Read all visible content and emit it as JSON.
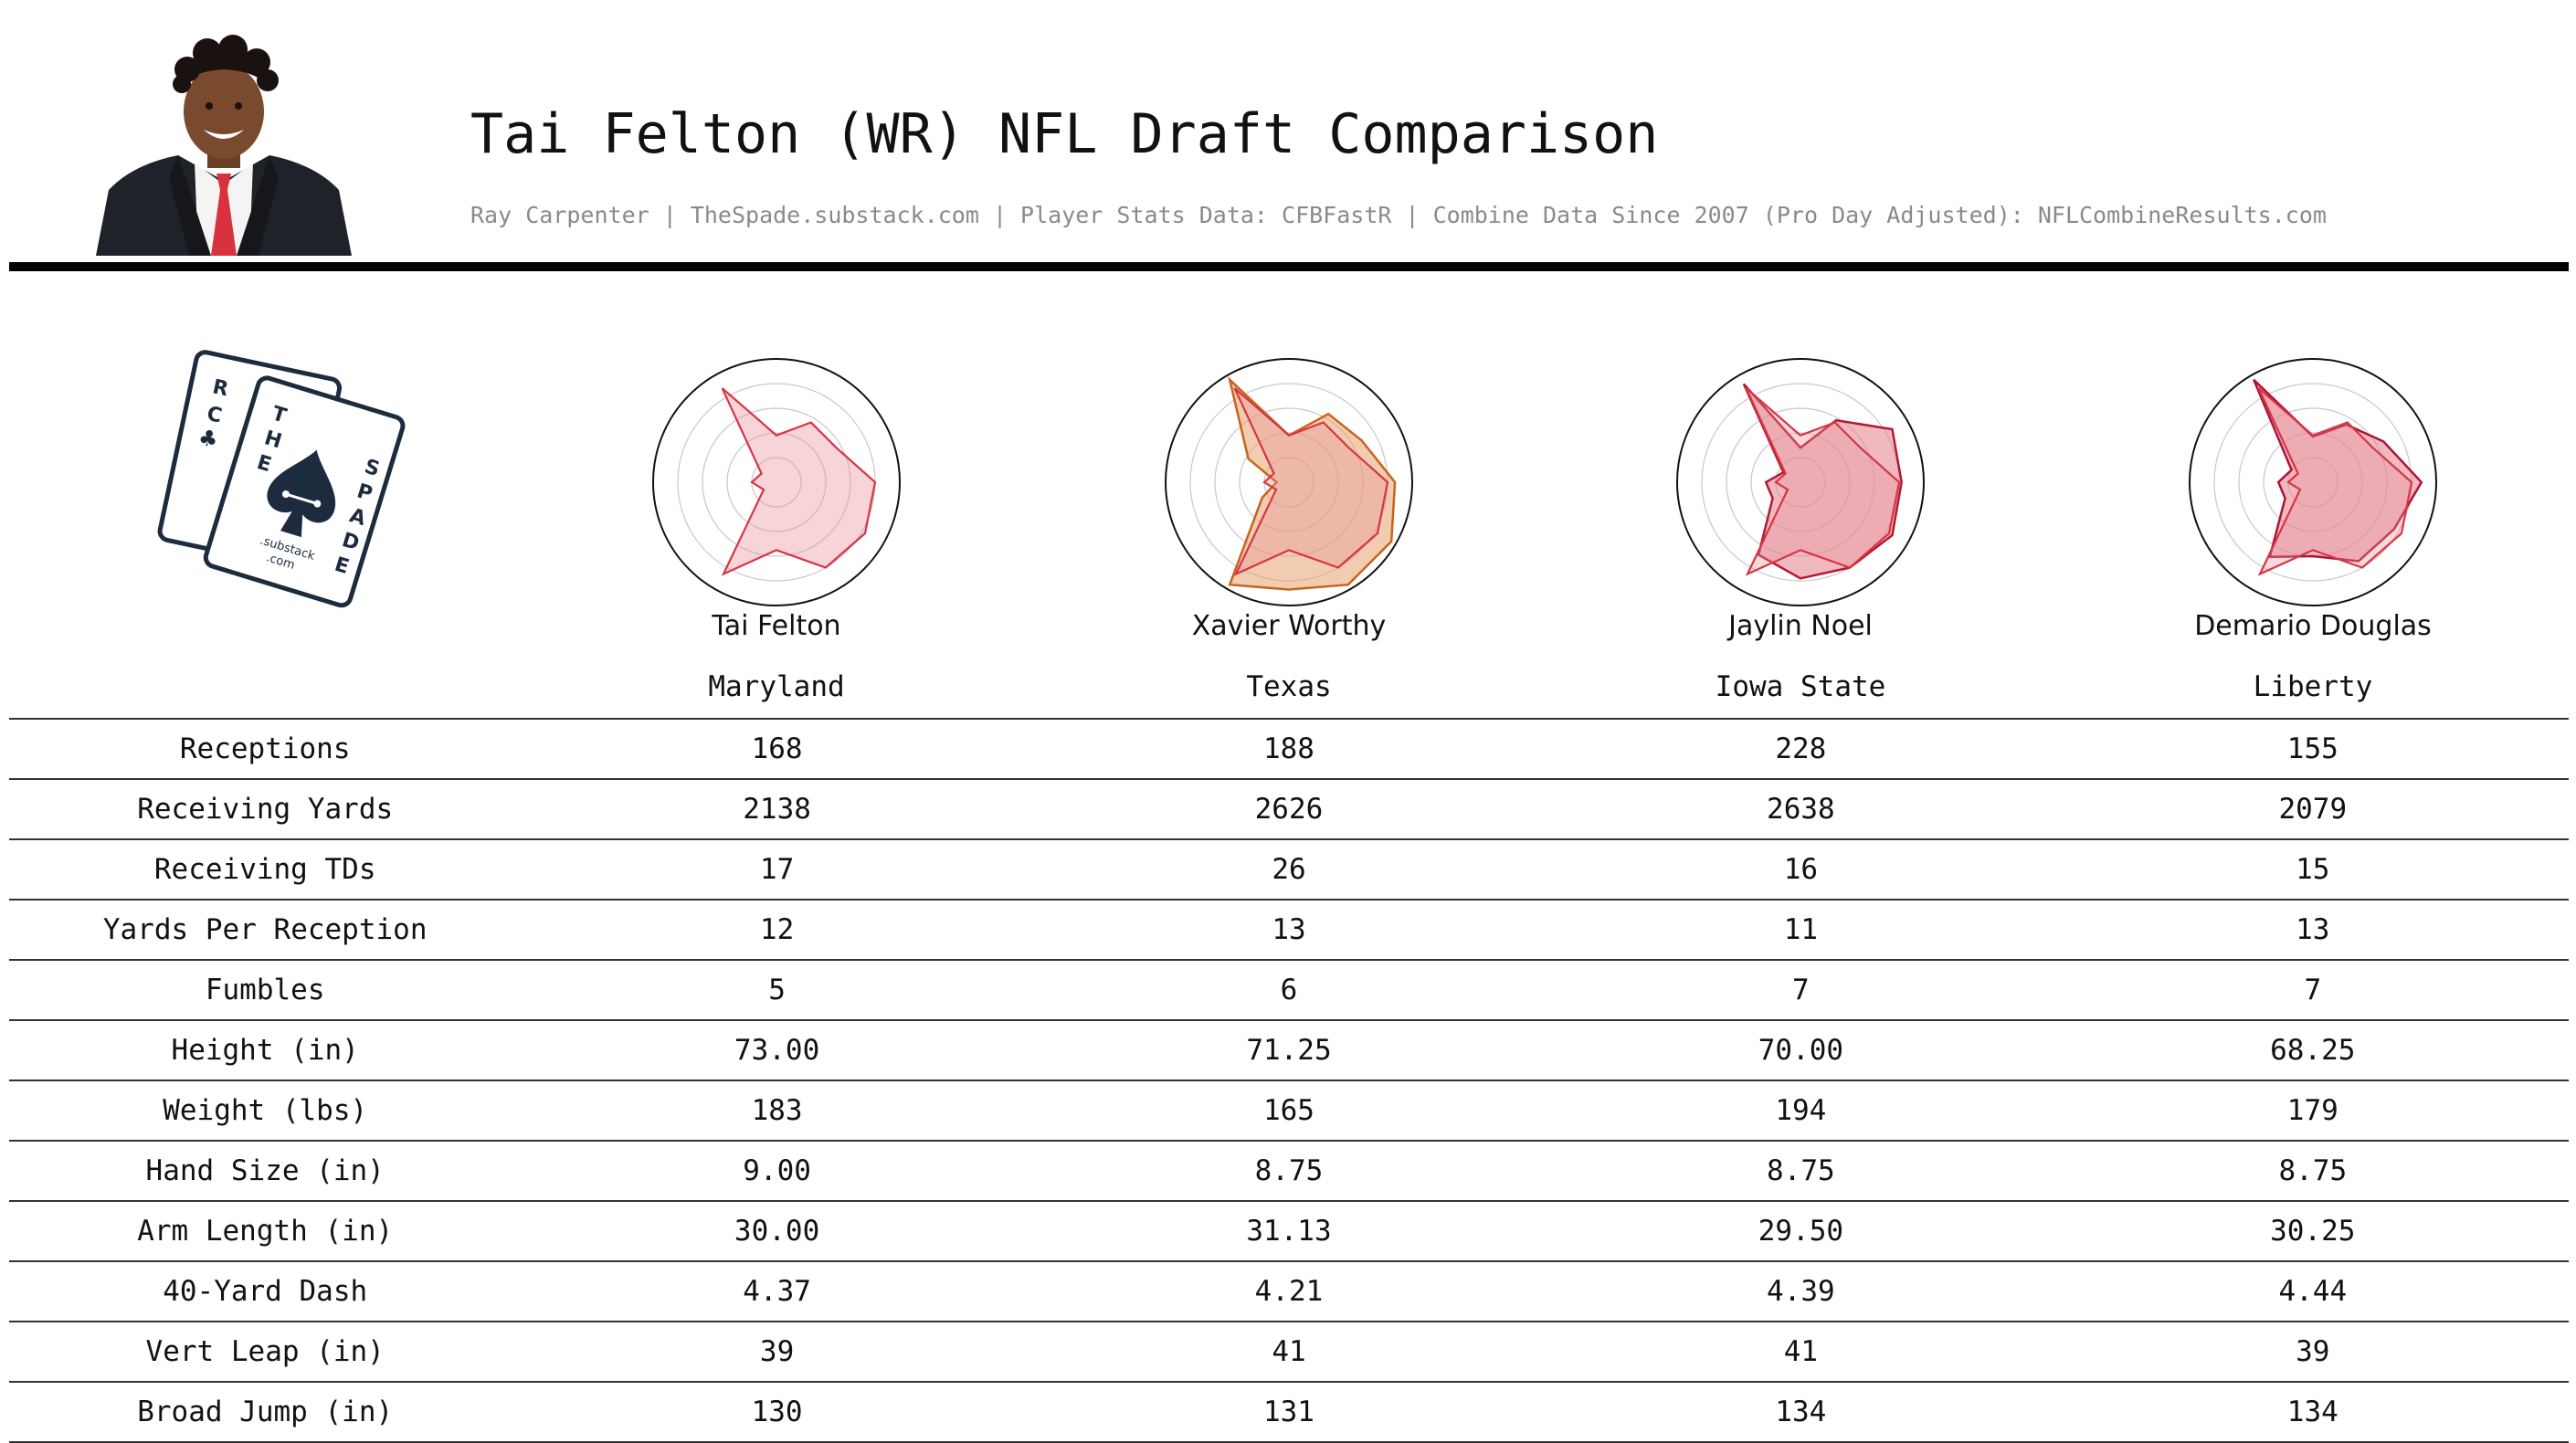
{
  "header": {
    "title": "Tai Felton (WR) NFL Draft Comparison",
    "subtitle": "Ray Carpenter | TheSpade.substack.com | Player Stats Data: CFBFastR | Combine Data Since 2007 (Pro Day Adjusted): NFLCombineResults.com"
  },
  "logo": {
    "letters_left": [
      "R",
      "C"
    ],
    "letters_the": [
      "T",
      "H",
      "E"
    ],
    "letters_spade": [
      "S",
      "P",
      "A",
      "D",
      "E"
    ],
    "line1": ".substack",
    "line2": ".com"
  },
  "players": [
    {
      "name": "Tai Felton",
      "school": "Maryland",
      "highlight": true
    },
    {
      "name": "Xavier Worthy",
      "school": "Texas",
      "highlight": false
    },
    {
      "name": "Jaylin Noel",
      "school": "Iowa State",
      "highlight": false
    },
    {
      "name": "Demario Douglas",
      "school": "Liberty",
      "highlight": false
    }
  ],
  "colors": {
    "target_fill": "#e8939c",
    "target_stroke": "#d63545",
    "comp_worthy_fill": "#e6a371",
    "comp_worthy_stroke": "#c8641b",
    "comp_noel_fill": "#e3808c",
    "comp_noel_stroke": "#b81830",
    "comp_douglas_fill": "#e3808c",
    "comp_douglas_stroke": "#ad1437"
  },
  "chart_data": {
    "type": "radar",
    "axes": [
      "Receptions",
      "Receiving Yards",
      "Receiving TDs",
      "Yards Per Reception",
      "Fumbles",
      "Height (in)",
      "Weight (lbs)",
      "Hand Size (in)",
      "Arm Length (in)",
      "40-Yard Dash",
      "Vert Leap (in)",
      "Broad Jump (in)"
    ],
    "profiles": {
      "Tai Felton": [
        0.38,
        0.56,
        0.56,
        0.8,
        0.83,
        0.8,
        0.55,
        0.86,
        0.12,
        0.2,
        0.14,
        0.88
      ],
      "Xavier Worthy": [
        0.38,
        0.64,
        0.68,
        0.86,
        0.96,
        0.96,
        0.87,
        0.96,
        0.25,
        0.1,
        0.38,
        0.96
      ],
      "Jaylin Noel": [
        0.28,
        0.58,
        0.86,
        0.82,
        0.86,
        0.8,
        0.78,
        0.68,
        0.26,
        0.28,
        0.16,
        0.92
      ],
      "Demario Douglas": [
        0.37,
        0.54,
        0.66,
        0.88,
        0.76,
        0.74,
        0.6,
        0.7,
        0.26,
        0.28,
        0.2,
        0.96
      ]
    },
    "table": {
      "columns": [
        "Tai Felton",
        "Xavier Worthy",
        "Jaylin Noel",
        "Demario Douglas"
      ],
      "rows": [
        {
          "label": "Receptions",
          "values": [
            "168",
            "188",
            "228",
            "155"
          ]
        },
        {
          "label": "Receiving Yards",
          "values": [
            "2138",
            "2626",
            "2638",
            "2079"
          ]
        },
        {
          "label": "Receiving TDs",
          "values": [
            "17",
            "26",
            "16",
            "15"
          ]
        },
        {
          "label": "Yards Per Reception",
          "values": [
            "12",
            "13",
            "11",
            "13"
          ]
        },
        {
          "label": "Fumbles",
          "values": [
            "5",
            "6",
            "7",
            "7"
          ]
        },
        {
          "label": "Height (in)",
          "values": [
            "73.00",
            "71.25",
            "70.00",
            "68.25"
          ]
        },
        {
          "label": "Weight (lbs)",
          "values": [
            "183",
            "165",
            "194",
            "179"
          ]
        },
        {
          "label": "Hand Size (in)",
          "values": [
            "9.00",
            "8.75",
            "8.75",
            "8.75"
          ]
        },
        {
          "label": "Arm Length (in)",
          "values": [
            "30.00",
            "31.13",
            "29.50",
            "30.25"
          ]
        },
        {
          "label": "40-Yard Dash",
          "values": [
            "4.37",
            "4.21",
            "4.39",
            "4.44"
          ]
        },
        {
          "label": "Vert Leap (in)",
          "values": [
            "39",
            "41",
            "41",
            "39"
          ]
        },
        {
          "label": "Broad Jump (in)",
          "values": [
            "130",
            "131",
            "134",
            "134"
          ]
        }
      ]
    }
  }
}
